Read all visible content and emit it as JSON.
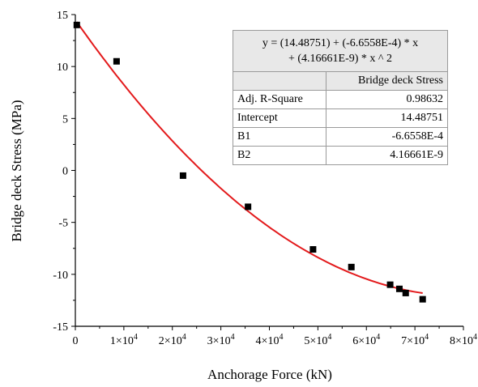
{
  "chart_data": {
    "type": "scatter",
    "xlabel": "Anchorage Force (kN)",
    "ylabel": "Bridge deck Stress (MPa)",
    "xlim": [
      0,
      80000
    ],
    "ylim": [
      -15,
      15
    ],
    "x_ticks": [
      0,
      10000,
      20000,
      30000,
      40000,
      50000,
      60000,
      70000,
      80000
    ],
    "x_tick_labels": [
      {
        "base": "0",
        "exp": ""
      },
      {
        "base": "1×10",
        "exp": "4"
      },
      {
        "base": "2×10",
        "exp": "4"
      },
      {
        "base": "3×10",
        "exp": "4"
      },
      {
        "base": "4×10",
        "exp": "4"
      },
      {
        "base": "5×10",
        "exp": "4"
      },
      {
        "base": "6×10",
        "exp": "4"
      },
      {
        "base": "7×10",
        "exp": "4"
      },
      {
        "base": "8×10",
        "exp": "4"
      }
    ],
    "y_ticks": [
      -15,
      -10,
      -5,
      0,
      5,
      10,
      15
    ],
    "y_tick_labels": [
      "-15",
      "-10",
      "-5",
      "0",
      "5",
      "10",
      "15"
    ],
    "grid": false,
    "series": [
      {
        "type": "scatter",
        "color": "#000000",
        "marker": "square",
        "points": [
          {
            "x": 300,
            "y": 14.0
          },
          {
            "x": 8500,
            "y": 10.5
          },
          {
            "x": 22200,
            "y": -0.5
          },
          {
            "x": 35600,
            "y": -3.5
          },
          {
            "x": 49000,
            "y": -7.6
          },
          {
            "x": 56900,
            "y": -9.3
          },
          {
            "x": 64900,
            "y": -11.0
          },
          {
            "x": 66800,
            "y": -11.4
          },
          {
            "x": 68100,
            "y": -11.8
          },
          {
            "x": 71600,
            "y": -12.4
          }
        ]
      },
      {
        "type": "line",
        "color": "#e31a1c",
        "fit": {
          "intercept": 14.48751,
          "b1": -0.00066558,
          "b2": 4.16661e-09,
          "x_range": [
            300,
            71600
          ]
        }
      }
    ],
    "fit_table": {
      "equation_line1": "y = (14.48751) + (-6.6558E-4) * x",
      "equation_line2": "+ (4.16661E-9) * x ^ 2",
      "column_header": "Bridge deck Stress",
      "rows": [
        {
          "name": "Adj. R-Square",
          "value": "0.98632"
        },
        {
          "name": "Intercept",
          "value": "14.48751"
        },
        {
          "name": "B1",
          "value": "-6.6558E-4"
        },
        {
          "name": "B2",
          "value": "4.16661E-9"
        }
      ]
    }
  }
}
